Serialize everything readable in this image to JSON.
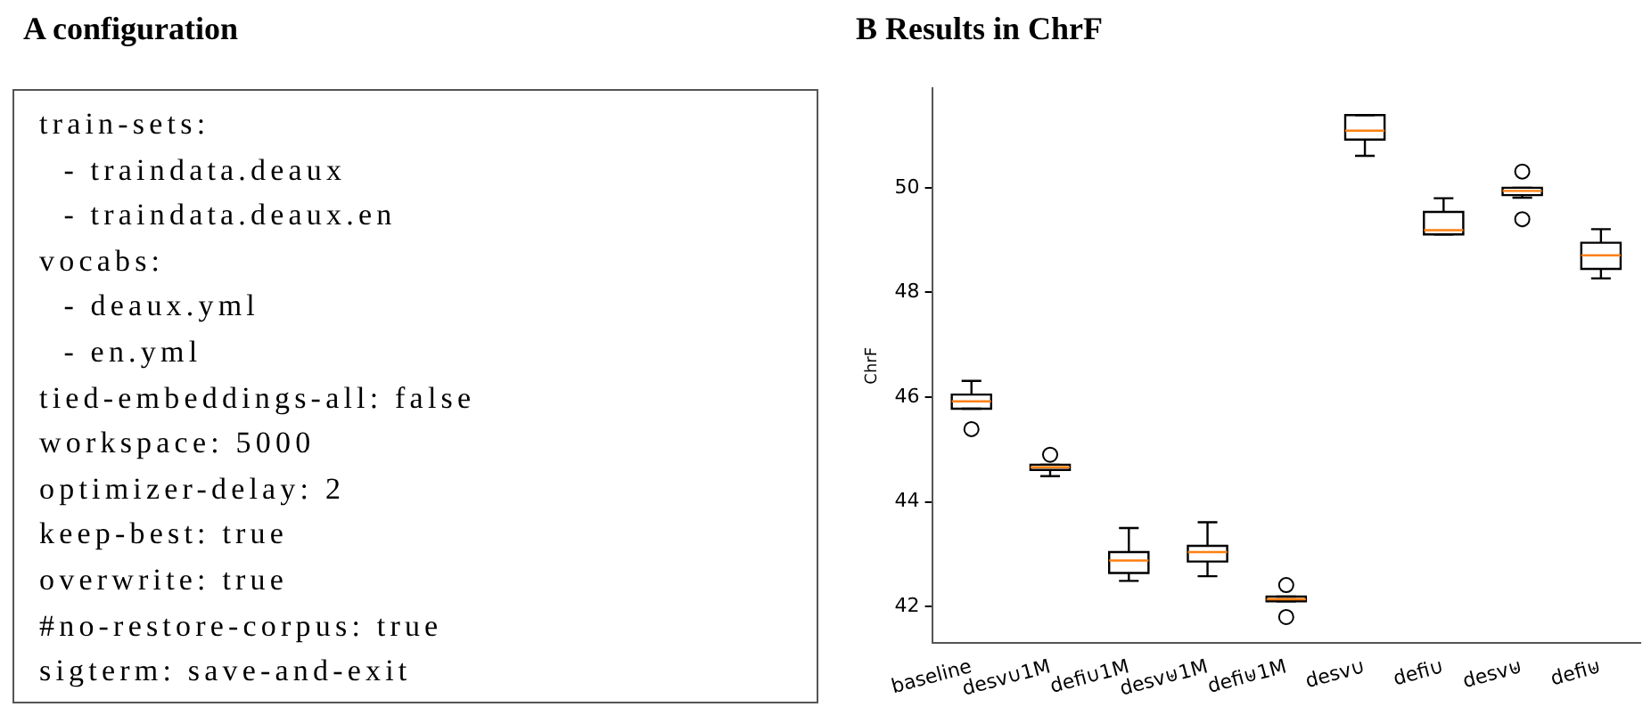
{
  "chart_data": [
    {
      "type": "other",
      "title": "A configuration",
      "annotations": [
        "train-sets:",
        "  - traindata.deaux",
        "  - traindata.deaux.en",
        "vocabs:",
        "  - deaux.yml",
        "  - en.yml",
        "tied-embeddings-all: false",
        "workspace: 5000",
        "optimizer-delay: 2",
        "keep-best: true",
        "overwrite: true",
        "#no-restore-corpus: true",
        "sigterm: save-and-exit"
      ]
    },
    {
      "type": "box",
      "title": "B Results in ChrF",
      "ylabel": "ChrF",
      "categories": [
        "baseline",
        "desv∪1M",
        "defi∪1M",
        "desv⊎1M",
        "defi⊎1M",
        "desv∪",
        "defi∪",
        "desv⊎",
        "defi⊎"
      ],
      "boxes": [
        {
          "low": 45.78,
          "q1": 45.78,
          "median": 45.92,
          "q3": 46.05,
          "high": 46.31,
          "outliers": [
            45.39
          ]
        },
        {
          "low": 44.49,
          "q1": 44.61,
          "median": 44.66,
          "q3": 44.71,
          "high": 44.71,
          "outliers": [
            44.9
          ]
        },
        {
          "low": 42.49,
          "q1": 42.64,
          "median": 42.88,
          "q3": 43.04,
          "high": 43.5
        },
        {
          "low": 42.58,
          "q1": 42.86,
          "median": 43.04,
          "q3": 43.16,
          "high": 43.61
        },
        {
          "low": 42.1,
          "q1": 42.1,
          "median": 42.14,
          "q3": 42.19,
          "high": 42.19,
          "outliers": [
            42.41,
            41.8
          ]
        },
        {
          "low": 50.61,
          "q1": 50.92,
          "median": 51.09,
          "q3": 51.39,
          "high": 51.39
        },
        {
          "low": 49.11,
          "q1": 49.11,
          "median": 49.19,
          "q3": 49.54,
          "high": 49.8
        },
        {
          "low": 49.81,
          "q1": 49.86,
          "median": 49.94,
          "q3": 50.0,
          "high": 50.0,
          "outliers": [
            50.31,
            49.4
          ]
        },
        {
          "low": 48.27,
          "q1": 48.45,
          "median": 48.71,
          "q3": 48.95,
          "high": 49.21
        }
      ],
      "color": "#000000",
      "ylim": [
        41.3,
        51.9
      ],
      "yticks": [
        42,
        44,
        46,
        48,
        50
      ],
      "grid": false,
      "legend": false
    }
  ]
}
